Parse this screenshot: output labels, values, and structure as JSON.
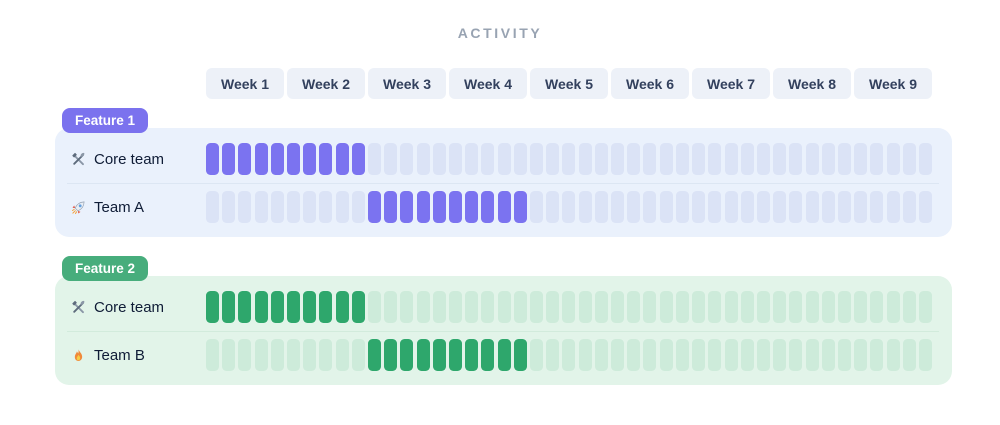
{
  "title": "ACTIVITY",
  "colors": {
    "title_text": "#98a3b2",
    "week_pill_bg": "#edf1f8",
    "week_pill_text": "#33415e",
    "row_label_text": "#0f1c36"
  },
  "chart_data": {
    "type": "bar",
    "subtype": "gantt-activity-grid",
    "title": "ACTIVITY",
    "legend_position": "none",
    "x": {
      "categories": [
        "Week 1",
        "Week 2",
        "Week 3",
        "Week 4",
        "Week 5",
        "Week 6",
        "Week 7",
        "Week 8",
        "Week 9"
      ],
      "cells_per_week": 5,
      "total_cells": 45
    },
    "groups": [
      {
        "label": "Feature 1",
        "theme": {
          "badge_bg": "#7b72ee",
          "badge_text": "#ffffff",
          "panel_bg": "#eaf1fc",
          "cell_filled": "#7b73f0",
          "cell_empty": "#dbe3f6",
          "divider": "#dce6f3"
        },
        "rows": [
          {
            "icon": "hammer-wrench-icon",
            "label": "Core team",
            "active_cells_start": 1,
            "active_cells_end": 10
          },
          {
            "icon": "rocket-icon",
            "label": "Team A",
            "active_cells_start": 11,
            "active_cells_end": 20
          }
        ]
      },
      {
        "label": "Feature 2",
        "theme": {
          "badge_bg": "#47ad7c",
          "badge_text": "#ffffff",
          "panel_bg": "#e2f4e9",
          "cell_filled": "#2ea76c",
          "cell_empty": "#cdebda",
          "divider": "#d2ebdc"
        },
        "rows": [
          {
            "icon": "hammer-wrench-icon",
            "label": "Core team",
            "active_cells_start": 1,
            "active_cells_end": 10
          },
          {
            "icon": "fire-icon",
            "label": "Team B",
            "active_cells_start": 11,
            "active_cells_end": 20
          }
        ]
      }
    ]
  }
}
